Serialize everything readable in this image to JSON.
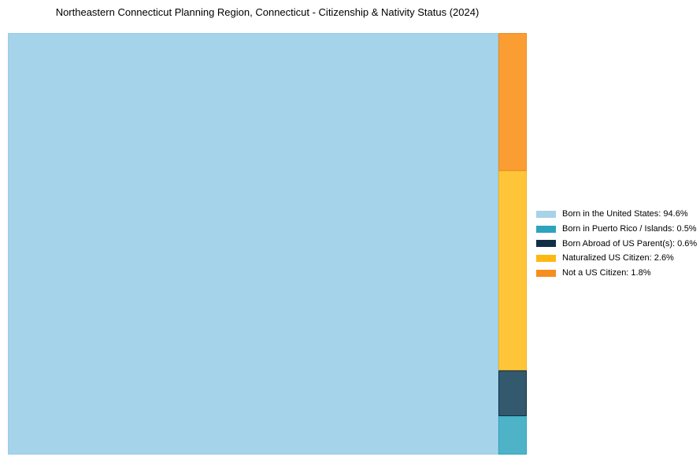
{
  "chart_data": {
    "type": "treemap",
    "title": "Northeastern Connecticut Planning Region, Connecticut - Citizenship & Nativity Status (2024)",
    "unit": "%",
    "legend_position": "right",
    "main_block": "Born in the United States",
    "column_top_to_bottom": [
      "Not a US Citizen",
      "Naturalized US Citizen",
      "Born Abroad of US Parent(s)",
      "Born in Puerto Rico / Islands"
    ],
    "series": [
      {
        "label": "Born in the United States",
        "value": 94.6,
        "fill": "#A5D3EA",
        "stroke": "#97CBE6",
        "legend_color": "#A8D2E8"
      },
      {
        "label": "Born in Puerto Rico / Islands",
        "value": 0.5,
        "fill": "#4FB3C8",
        "stroke": "#2DA3BF",
        "legend_color": "#2DA3BF"
      },
      {
        "label": "Born Abroad of US Parent(s)",
        "value": 0.6,
        "fill": "#33596F",
        "stroke": "#133045",
        "legend_color": "#122F44"
      },
      {
        "label": "Naturalized US Citizen",
        "value": 2.6,
        "fill": "#FEC539",
        "stroke": "#F4B123",
        "legend_color": "#FDB912"
      },
      {
        "label": "Not a US Citizen",
        "value": 1.8,
        "fill": "#FA9E33",
        "stroke": "#EE8C24",
        "legend_color": "#F68D1E"
      }
    ]
  }
}
